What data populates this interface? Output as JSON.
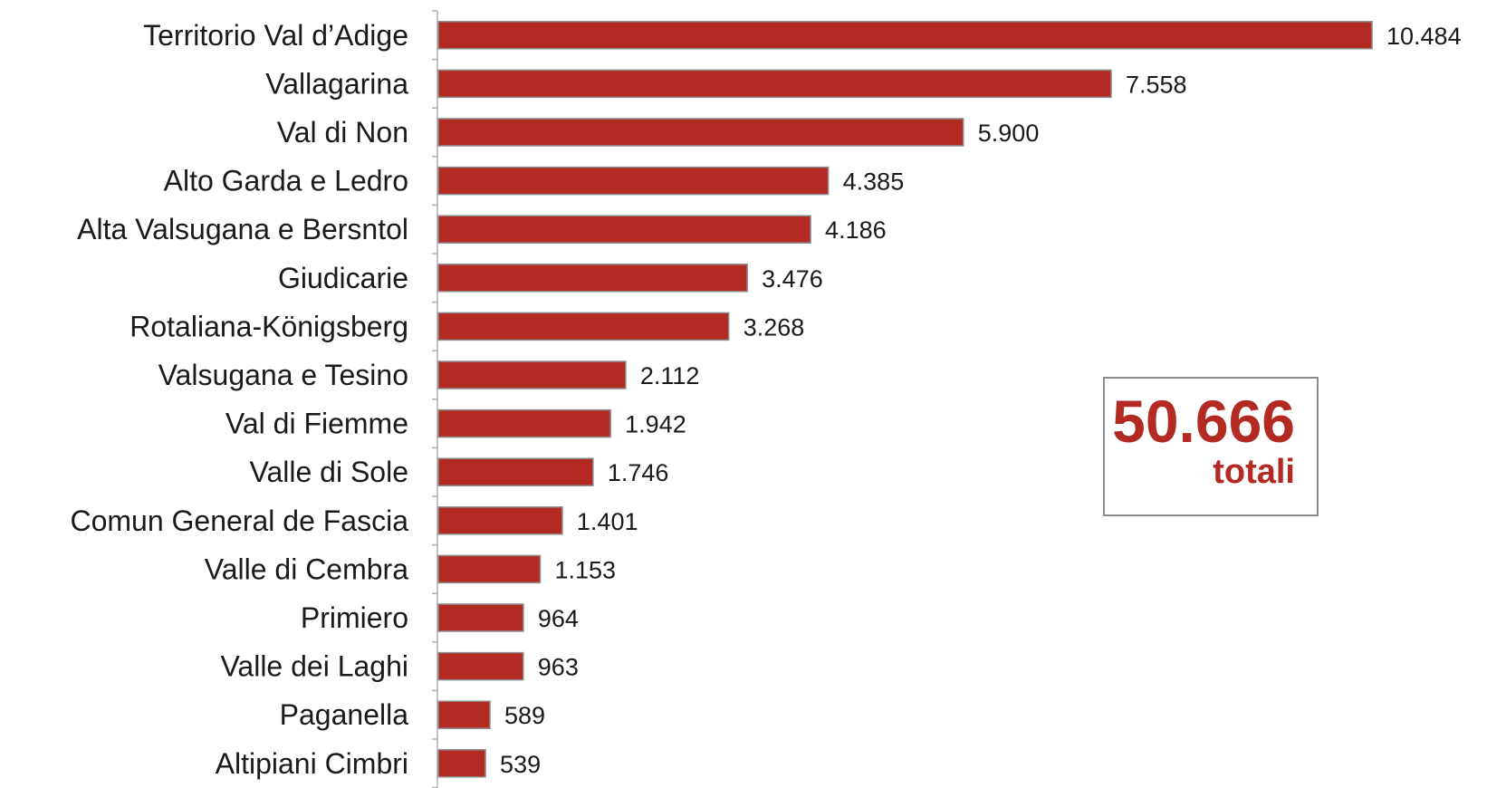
{
  "chart_data": {
    "type": "bar",
    "orientation": "horizontal",
    "categories": [
      "Territorio Val d’Adige",
      "Vallagarina",
      "Val di Non",
      "Alto Garda e Ledro",
      "Alta Valsugana e Bersntol",
      "Giudicarie",
      "Rotaliana-Königsberg",
      "Valsugana e Tesino",
      "Val di Fiemme",
      "Valle di Sole",
      "Comun General de Fascia",
      "Valle di Cembra",
      "Primiero",
      "Valle dei Laghi",
      "Paganella",
      "Altipiani Cimbri"
    ],
    "values": [
      10484,
      7558,
      5900,
      4385,
      4186,
      3476,
      3268,
      2112,
      1942,
      1746,
      1401,
      1153,
      964,
      963,
      589,
      539
    ],
    "value_labels": [
      "10.484",
      "7.558",
      "5.900",
      "4.385",
      "4.186",
      "3.476",
      "3.268",
      "2.112",
      "1.942",
      "1.746",
      "1.401",
      "1.153",
      "964",
      "963",
      "589",
      "539"
    ],
    "xlim": [
      0,
      10484
    ],
    "grid": false,
    "legend": "none",
    "bar_color": "#B22A22",
    "bar_edge_color": "#8c8c8c",
    "axis_color": "#b0b0b0"
  },
  "total_box": {
    "value": "50.666",
    "caption": "totali",
    "color": "#B22A22"
  }
}
